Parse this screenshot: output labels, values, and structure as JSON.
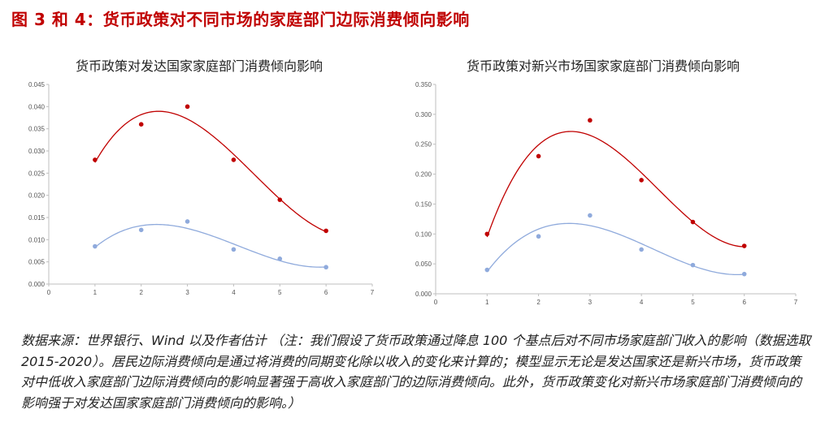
{
  "figure": {
    "title": "图 3 和 4：货币政策对不同市场的家庭部门边际消费倾向影响",
    "note": "数据来源：世界银行、Wind 以及作者估计 （注：我们假设了货币政策通过降息 100 个基点后对不同市场家庭部门收入的影响（数据选取 2015-2020）。居民边际消费倾向是通过将消费的同期变化除以收入的变化来计算的；模型显示无论是发达国家还是新兴市场，货币政策对中低收入家庭部门边际消费倾向的影响显著强于高收入家庭部门的边际消费倾向。此外，货币政策变化对新兴市场家庭部门消费倾向的影响强于对发达国家家庭部门消费倾向的影响。）"
  },
  "colors": {
    "series_red": "#c00000",
    "series_blue": "#8faadc",
    "axis": "#bfbfbf",
    "title_red": "#c00000"
  },
  "chart_data": [
    {
      "type": "scatter",
      "title": "货币政策对发达国家家庭部门消费倾向影响",
      "xlim": [
        0,
        7
      ],
      "ylim": [
        0,
        0.045
      ],
      "xticks": [
        "0",
        "1",
        "2",
        "3",
        "4",
        "5",
        "6",
        "7"
      ],
      "yticks": [
        "0.000",
        "0.005",
        "0.010",
        "0.015",
        "0.020",
        "0.025",
        "0.030",
        "0.035",
        "0.040",
        "0.045"
      ],
      "grid": false,
      "trendline": "polynomial",
      "series": [
        {
          "color": "#c00000",
          "x": [
            1,
            2,
            3,
            4,
            5,
            6
          ],
          "y": [
            0.028,
            0.036,
            0.04,
            0.028,
            0.019,
            0.012
          ]
        },
        {
          "color": "#8faadc",
          "x": [
            1,
            2,
            3,
            4,
            5,
            6
          ],
          "y": [
            0.0085,
            0.0122,
            0.0141,
            0.0078,
            0.0057,
            0.0038
          ]
        }
      ]
    },
    {
      "type": "scatter",
      "title": "货币政策对新兴市场国家家庭部门消费倾向影响",
      "xlim": [
        0,
        7
      ],
      "ylim": [
        0,
        0.35
      ],
      "xticks": [
        "0",
        "1",
        "2",
        "3",
        "4",
        "5",
        "6",
        "7"
      ],
      "yticks": [
        "0.000",
        "0.050",
        "0.100",
        "0.150",
        "0.200",
        "0.250",
        "0.300",
        "0.350"
      ],
      "grid": false,
      "trendline": "polynomial",
      "series": [
        {
          "color": "#c00000",
          "x": [
            1,
            2,
            3,
            4,
            5,
            6
          ],
          "y": [
            0.1,
            0.23,
            0.29,
            0.19,
            0.12,
            0.08
          ]
        },
        {
          "color": "#8faadc",
          "x": [
            1,
            2,
            3,
            4,
            5,
            6
          ],
          "y": [
            0.04,
            0.096,
            0.131,
            0.074,
            0.048,
            0.033
          ]
        }
      ]
    }
  ]
}
